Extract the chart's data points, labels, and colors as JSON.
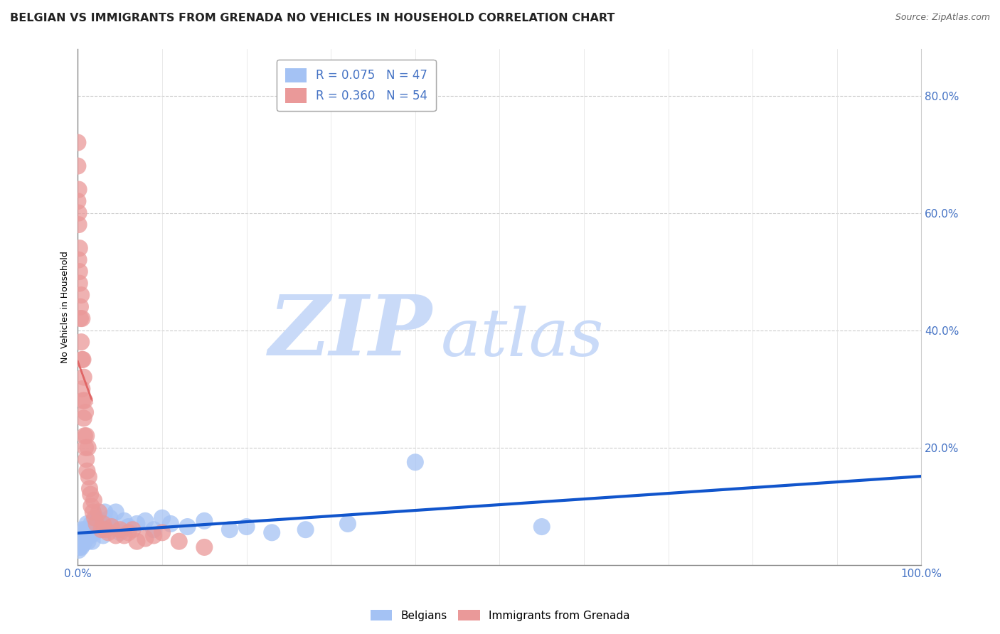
{
  "title": "BELGIAN VS IMMIGRANTS FROM GRENADA NO VEHICLES IN HOUSEHOLD CORRELATION CHART",
  "source": "Source: ZipAtlas.com",
  "ylabel": "No Vehicles in Household",
  "xlim": [
    0.0,
    1.0
  ],
  "ylim": [
    0.0,
    0.88
  ],
  "yticks": [
    0.2,
    0.4,
    0.6,
    0.8
  ],
  "ytick_labels": [
    "20.0%",
    "40.0%",
    "60.0%",
    "80.0%"
  ],
  "xtick_labels": [
    "0.0%",
    "100.0%"
  ],
  "legend_belgian": "R = 0.075   N = 47",
  "legend_grenada": "R = 0.360   N = 54",
  "blue_color": "#a4c2f4",
  "pink_color": "#ea9999",
  "blue_line_color": "#1155cc",
  "pink_line_color": "#e06666",
  "watermark_zip": "ZIP",
  "watermark_atlas": "atlas",
  "watermark_color": "#c9daf8",
  "background_color": "#ffffff",
  "belgian_x": [
    0.001,
    0.002,
    0.002,
    0.003,
    0.003,
    0.004,
    0.005,
    0.005,
    0.006,
    0.007,
    0.008,
    0.009,
    0.01,
    0.011,
    0.012,
    0.013,
    0.015,
    0.016,
    0.017,
    0.018,
    0.02,
    0.022,
    0.025,
    0.027,
    0.03,
    0.032,
    0.035,
    0.038,
    0.04,
    0.045,
    0.05,
    0.055,
    0.06,
    0.07,
    0.08,
    0.09,
    0.1,
    0.11,
    0.13,
    0.15,
    0.18,
    0.2,
    0.23,
    0.27,
    0.32,
    0.4,
    0.55
  ],
  "belgian_y": [
    0.025,
    0.03,
    0.04,
    0.035,
    0.05,
    0.03,
    0.04,
    0.06,
    0.035,
    0.05,
    0.04,
    0.06,
    0.05,
    0.07,
    0.04,
    0.06,
    0.05,
    0.07,
    0.04,
    0.06,
    0.055,
    0.08,
    0.06,
    0.07,
    0.05,
    0.09,
    0.07,
    0.08,
    0.065,
    0.09,
    0.055,
    0.075,
    0.065,
    0.07,
    0.075,
    0.06,
    0.08,
    0.07,
    0.065,
    0.075,
    0.06,
    0.065,
    0.055,
    0.06,
    0.07,
    0.175,
    0.065
  ],
  "grenada_x": [
    0.0,
    0.0,
    0.0,
    0.001,
    0.001,
    0.001,
    0.001,
    0.002,
    0.002,
    0.002,
    0.003,
    0.003,
    0.004,
    0.004,
    0.005,
    0.005,
    0.005,
    0.006,
    0.006,
    0.007,
    0.007,
    0.008,
    0.008,
    0.009,
    0.009,
    0.01,
    0.01,
    0.011,
    0.012,
    0.013,
    0.014,
    0.015,
    0.016,
    0.018,
    0.019,
    0.02,
    0.022,
    0.025,
    0.028,
    0.03,
    0.033,
    0.036,
    0.04,
    0.045,
    0.05,
    0.055,
    0.06,
    0.065,
    0.07,
    0.08,
    0.09,
    0.1,
    0.12,
    0.15
  ],
  "grenada_y": [
    0.62,
    0.68,
    0.72,
    0.52,
    0.58,
    0.64,
    0.6,
    0.48,
    0.54,
    0.5,
    0.44,
    0.42,
    0.38,
    0.46,
    0.35,
    0.42,
    0.3,
    0.28,
    0.35,
    0.25,
    0.32,
    0.22,
    0.28,
    0.2,
    0.26,
    0.18,
    0.22,
    0.16,
    0.2,
    0.15,
    0.13,
    0.12,
    0.1,
    0.09,
    0.11,
    0.08,
    0.07,
    0.09,
    0.06,
    0.07,
    0.06,
    0.055,
    0.065,
    0.05,
    0.06,
    0.05,
    0.055,
    0.06,
    0.04,
    0.045,
    0.05,
    0.055,
    0.04,
    0.03
  ],
  "title_fontsize": 11.5,
  "axis_label_fontsize": 9,
  "tick_fontsize": 11,
  "legend_fontsize": 12
}
